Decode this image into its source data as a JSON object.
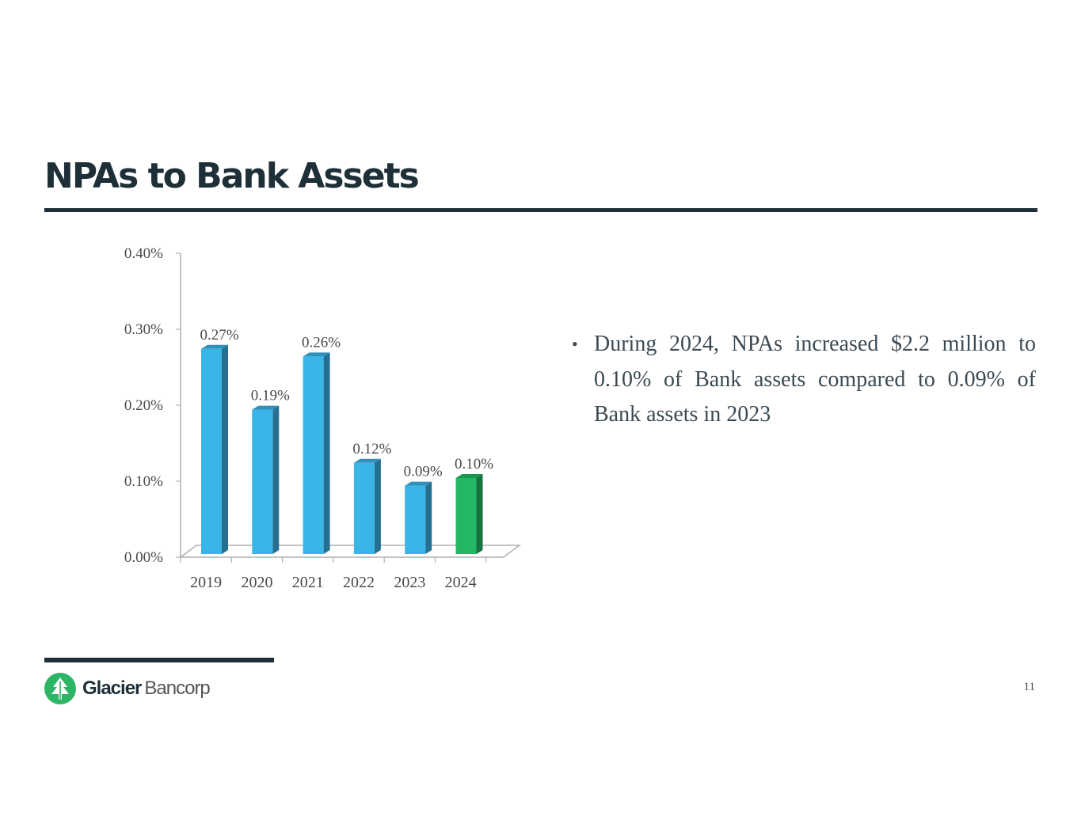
{
  "slide": {
    "title": "NPAs to Bank Assets",
    "bullet": "During 2024, NPAs increased $2.2 million to 0.10% of Bank assets compared to 0.09% of Bank assets in 2023",
    "page_number": "11"
  },
  "logo": {
    "name_bold": "Glacier",
    "name_light": "Bancorp",
    "icon": "tree-icon"
  },
  "colors": {
    "title": "#1e2f38",
    "bar_blue": "#3bb4e8",
    "bar_green": "#24b866",
    "logo_green": "#2bb564"
  },
  "chart_data": {
    "type": "bar",
    "categories": [
      "2019",
      "2020",
      "2021",
      "2022",
      "2023",
      "2024"
    ],
    "values": [
      0.27,
      0.19,
      0.26,
      0.12,
      0.09,
      0.1
    ],
    "data_labels": [
      "0.27%",
      "0.19%",
      "0.26%",
      "0.12%",
      "0.09%",
      "0.10%"
    ],
    "highlight_category": "2024",
    "ylim": [
      0,
      0.4
    ],
    "yticks": [
      "0.00%",
      "0.10%",
      "0.20%",
      "0.30%",
      "0.40%"
    ],
    "title": "",
    "xlabel": "",
    "ylabel": "",
    "style": "3d-columns",
    "grid": false
  }
}
